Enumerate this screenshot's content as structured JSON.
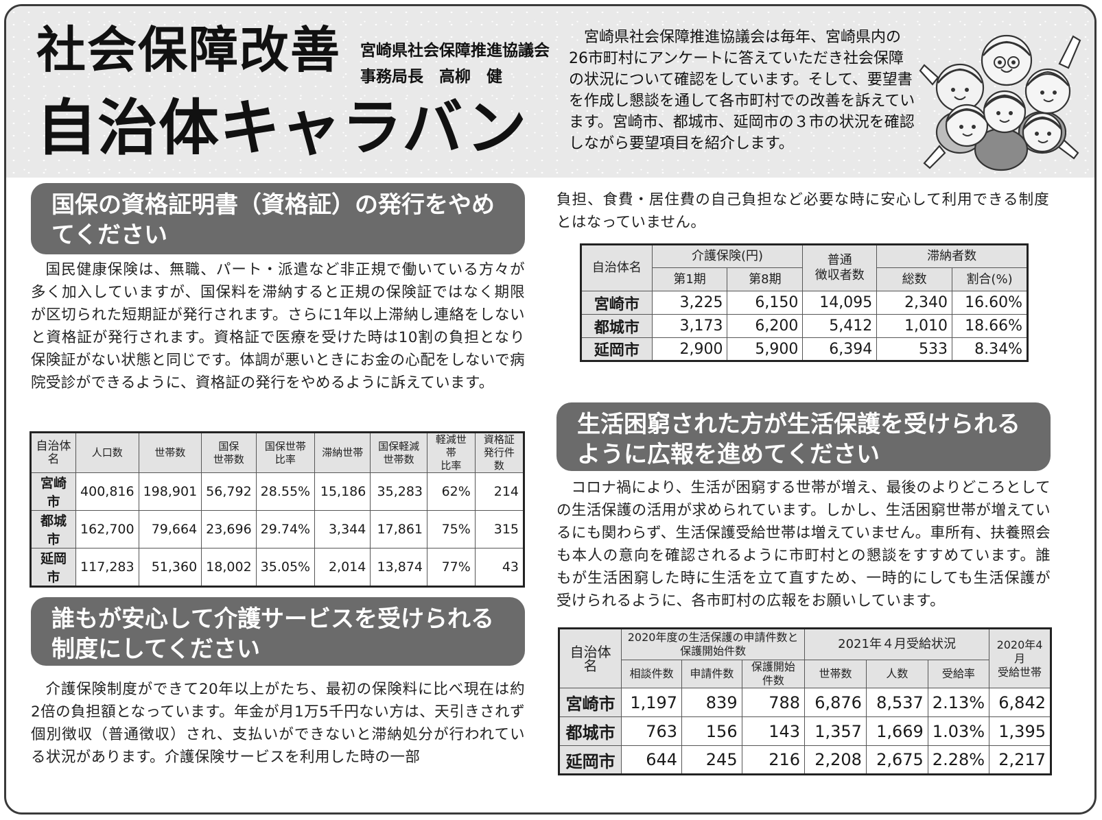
{
  "header": {
    "title_line1": "社会保障改善",
    "title_line2": "自治体キャラバン",
    "org": "宮崎県社会保障推進協議会",
    "author": "事務局長　高柳　健",
    "intro": "宮崎県社会保障推進協議会は毎年、宮崎県内の26市町村にアンケートに答えていただき社会保障の状況について確認をしています。そして、要望書を作成し懇談を通して各市町村での改善を訴えています。宮崎市、都城市、延岡市の３市の状況を確認しながら要望項目を紹介します。"
  },
  "section1": {
    "heading": "国保の資格証明書（資格証）の発行をやめてください",
    "body": "国民健康保険は、無職、パート・派遣など非正規で働いている方々が多く加入していますが、国保料を滞納すると正規の保険証ではなく期限が区切られた短期証が発行されます。さらに1年以上滞納し連絡をしないと資格証が発行されます。資格証で医療を受けた時は10割の負担となり保険証がない状態と同じです。体調が悪いときにお金の心配をしないで病院受診ができるように、資格証の発行をやめるように訴えています。",
    "table": {
      "headers": [
        "自治体名",
        "人口数",
        "世帯数",
        "国保\n世帯数",
        "国保世帯\n比率",
        "滞納世帯",
        "国保軽減\n世帯数",
        "軽減世帯\n比率",
        "資格証\n発行件数"
      ],
      "rows": [
        [
          "宮崎市",
          "400,816",
          "198,901",
          "56,792",
          "28.55%",
          "15,186",
          "35,283",
          "62%",
          "214"
        ],
        [
          "都城市",
          "162,700",
          "79,664",
          "23,696",
          "29.74%",
          "3,344",
          "17,861",
          "75%",
          "315"
        ],
        [
          "延岡市",
          "117,283",
          "51,360",
          "18,002",
          "35.05%",
          "2,014",
          "13,874",
          "77%",
          "43"
        ]
      ]
    }
  },
  "section2": {
    "heading": "誰もが安心して介護サービスを受けられる制度にしてください",
    "body": "介護保険制度ができて20年以上がたち、最初の保険料に比べ現在は約2倍の負担額となっています。年金が月1万5千円ない方は、天引きされず個別徴収（普通徴収）され、支払いができないと滞納処分が行われている状況があります。介護保険サービスを利用した時の一部",
    "continued": "負担、食費・居住費の自己負担など必要な時に安心して利用できる制度とはなっていません。",
    "table": {
      "col_name": "自治体名",
      "group1": "介護保険(円)",
      "sub1": "第1期",
      "sub2": "第8期",
      "col_futsu": "普通\n徴収者数",
      "group2": "滞納者数",
      "sub3": "総数",
      "sub4": "割合(%)",
      "rows": [
        [
          "宮崎市",
          "3,225",
          "6,150",
          "14,095",
          "2,340",
          "16.60%"
        ],
        [
          "都城市",
          "3,173",
          "6,200",
          "5,412",
          "1,010",
          "18.66%"
        ],
        [
          "延岡市",
          "2,900",
          "5,900",
          "6,394",
          "533",
          "8.34%"
        ]
      ]
    }
  },
  "section3": {
    "heading": "生活困窮された方が生活保護を受けられるように広報を進めてください",
    "body": "コロナ禍により、生活が困窮する世帯が増え、最後のよりどころとしての生活保護の活用が求められています。しかし、生活困窮世帯が増えているにも関わらず、生活保護受給世帯は増えていません。車所有、扶養照会も本人の意向を確認されるように市町村との懇談をすすめています。誰もが生活困窮した時に生活を立て直すため、一時的にしても生活保護が受けられるように、各市町村の広報をお願いしています。",
    "table": {
      "col_name": "自治体名",
      "group1": "2020年度の生活保護の申請件数と保護開始件数",
      "sub1": "相談件数",
      "sub2": "申請件数",
      "sub3": "保護開始件数",
      "group2": "2021年４月受給状況",
      "sub4": "世帯数",
      "sub5": "人数",
      "sub6": "受給率",
      "col_last": "2020年4月\n受給世帯",
      "rows": [
        [
          "宮崎市",
          "1,197",
          "839",
          "788",
          "6,876",
          "8,537",
          "2.13%",
          "6,842"
        ],
        [
          "都城市",
          "763",
          "156",
          "143",
          "1,357",
          "1,669",
          "1.03%",
          "1,395"
        ],
        [
          "延岡市",
          "644",
          "245",
          "216",
          "2,208",
          "2,675",
          "2.28%",
          "2,217"
        ]
      ]
    }
  }
}
